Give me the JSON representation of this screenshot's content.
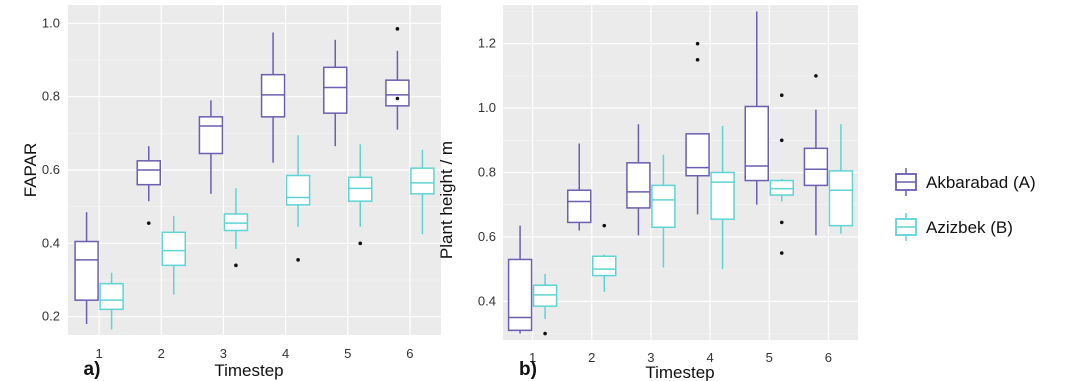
{
  "chart_data": [
    {
      "type": "boxplot",
      "panel_label": "a)",
      "xlabel": "Timestep",
      "ylabel": "FAPAR",
      "categories": [
        "1",
        "2",
        "3",
        "4",
        "5",
        "6"
      ],
      "yticks": [
        "0.2",
        "0.4",
        "0.6",
        "0.8",
        "1.0"
      ],
      "ylim": [
        0.15,
        1.05
      ],
      "grid": true,
      "series": [
        {
          "name": "Akbarabad (A)",
          "color": "#6a5fb0",
          "boxes": [
            {
              "min": 0.18,
              "q1": 0.245,
              "median": 0.355,
              "q3": 0.405,
              "max": 0.485,
              "outliers": []
            },
            {
              "min": 0.515,
              "q1": 0.56,
              "median": 0.6,
              "q3": 0.625,
              "max": 0.665,
              "outliers": [
                0.455
              ]
            },
            {
              "min": 0.535,
              "q1": 0.645,
              "median": 0.72,
              "q3": 0.745,
              "max": 0.79,
              "outliers": []
            },
            {
              "min": 0.62,
              "q1": 0.745,
              "median": 0.805,
              "q3": 0.86,
              "max": 0.975,
              "outliers": []
            },
            {
              "min": 0.665,
              "q1": 0.755,
              "median": 0.825,
              "q3": 0.88,
              "max": 0.955,
              "outliers": []
            },
            {
              "min": 0.71,
              "q1": 0.775,
              "median": 0.805,
              "q3": 0.845,
              "max": 0.925,
              "outliers": [
                0.985,
                0.795
              ]
            }
          ]
        },
        {
          "name": "Azizbek (B)",
          "color": "#5fd4d4",
          "boxes": [
            {
              "min": 0.165,
              "q1": 0.22,
              "median": 0.245,
              "q3": 0.29,
              "max": 0.32,
              "outliers": []
            },
            {
              "min": 0.26,
              "q1": 0.34,
              "median": 0.38,
              "q3": 0.43,
              "max": 0.475,
              "outliers": []
            },
            {
              "min": 0.385,
              "q1": 0.435,
              "median": 0.455,
              "q3": 0.48,
              "max": 0.55,
              "outliers": [
                0.34
              ]
            },
            {
              "min": 0.445,
              "q1": 0.505,
              "median": 0.525,
              "q3": 0.585,
              "max": 0.695,
              "outliers": [
                0.355
              ]
            },
            {
              "min": 0.445,
              "q1": 0.515,
              "median": 0.55,
              "q3": 0.58,
              "max": 0.67,
              "outliers": [
                0.4
              ]
            },
            {
              "min": 0.425,
              "q1": 0.535,
              "median": 0.565,
              "q3": 0.605,
              "max": 0.655,
              "outliers": []
            }
          ]
        }
      ]
    },
    {
      "type": "boxplot",
      "panel_label": "b)",
      "xlabel": "Timestep",
      "ylabel": "Plant height / m",
      "categories": [
        "1",
        "2",
        "3",
        "4",
        "5",
        "6"
      ],
      "yticks": [
        "0.4",
        "0.6",
        "0.8",
        "1.0",
        "1.2"
      ],
      "ylim": [
        0.28,
        1.32
      ],
      "grid": true,
      "series": [
        {
          "name": "Akbarabad (A)",
          "color": "#6a5fb0",
          "boxes": [
            {
              "min": 0.3,
              "q1": 0.31,
              "median": 0.35,
              "q3": 0.53,
              "max": 0.635,
              "outliers": []
            },
            {
              "min": 0.62,
              "q1": 0.645,
              "median": 0.71,
              "q3": 0.745,
              "max": 0.89,
              "outliers": []
            },
            {
              "min": 0.605,
              "q1": 0.69,
              "median": 0.74,
              "q3": 0.83,
              "max": 0.95,
              "outliers": []
            },
            {
              "min": 0.67,
              "q1": 0.79,
              "median": 0.815,
              "q3": 0.92,
              "max": 0.92,
              "outliers": [
                1.2,
                1.15
              ]
            },
            {
              "min": 0.7,
              "q1": 0.775,
              "median": 0.82,
              "q3": 1.005,
              "max": 1.3,
              "outliers": []
            },
            {
              "min": 0.605,
              "q1": 0.76,
              "median": 0.81,
              "q3": 0.875,
              "max": 0.995,
              "outliers": [
                1.1
              ]
            }
          ]
        },
        {
          "name": "Azizbek (B)",
          "color": "#5fd4d4",
          "boxes": [
            {
              "min": 0.345,
              "q1": 0.385,
              "median": 0.42,
              "q3": 0.45,
              "max": 0.485,
              "outliers": [
                0.3
              ]
            },
            {
              "min": 0.43,
              "q1": 0.48,
              "median": 0.5,
              "q3": 0.54,
              "max": 0.545,
              "outliers": [
                0.635
              ]
            },
            {
              "min": 0.505,
              "q1": 0.63,
              "median": 0.715,
              "q3": 0.76,
              "max": 0.855,
              "outliers": []
            },
            {
              "min": 0.5,
              "q1": 0.655,
              "median": 0.77,
              "q3": 0.8,
              "max": 0.945,
              "outliers": []
            },
            {
              "min": 0.71,
              "q1": 0.73,
              "median": 0.75,
              "q3": 0.775,
              "max": 0.78,
              "outliers": [
                1.04,
                0.9,
                0.645,
                0.55
              ]
            },
            {
              "min": 0.61,
              "q1": 0.635,
              "median": 0.745,
              "q3": 0.805,
              "max": 0.95,
              "outliers": []
            }
          ]
        }
      ]
    }
  ],
  "legend": {
    "items": [
      {
        "label": "Akbarabad (A)",
        "color": "#6a5fb0"
      },
      {
        "label": "Azizbek (B)",
        "color": "#5fd4d4"
      }
    ]
  }
}
